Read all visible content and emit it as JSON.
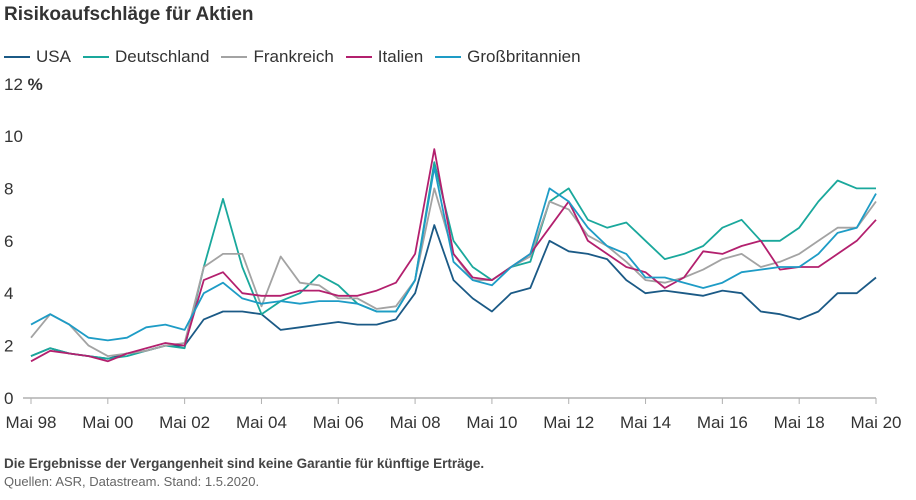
{
  "chart_data": {
    "type": "line",
    "title": "Risikoaufschläge für Aktien",
    "ylabel_top": "12",
    "yunit": "%",
    "ylim": [
      0,
      12
    ],
    "yticks": [
      "0",
      "2",
      "4",
      "6",
      "8",
      "10"
    ],
    "xticks": [
      "Mai 98",
      "Mai 00",
      "Mai 02",
      "Mai 04",
      "Mai 06",
      "Mai 08",
      "Mai 10",
      "Mai 12",
      "Mai 14",
      "Mai 16",
      "Mai 18",
      "Mai 20"
    ],
    "grid": false,
    "legend_position": "top",
    "x": [
      "1998-05",
      "1998-11",
      "1999-05",
      "1999-11",
      "2000-05",
      "2000-11",
      "2001-05",
      "2001-11",
      "2002-05",
      "2002-11",
      "2003-05",
      "2003-11",
      "2004-05",
      "2004-11",
      "2005-05",
      "2005-11",
      "2006-05",
      "2006-11",
      "2007-05",
      "2007-11",
      "2008-05",
      "2008-11",
      "2009-05",
      "2009-11",
      "2010-05",
      "2010-11",
      "2011-05",
      "2011-11",
      "2012-05",
      "2012-11",
      "2013-05",
      "2013-11",
      "2014-05",
      "2014-11",
      "2015-05",
      "2015-11",
      "2016-05",
      "2016-11",
      "2017-05",
      "2017-11",
      "2018-05",
      "2018-11",
      "2019-05",
      "2019-11",
      "2020-05"
    ],
    "series": [
      {
        "name": "USA",
        "color": "#1b5a86",
        "values": [
          1.6,
          1.9,
          1.7,
          1.6,
          1.5,
          1.7,
          1.8,
          2.0,
          2.0,
          3.0,
          3.3,
          3.3,
          3.2,
          2.6,
          2.7,
          2.8,
          2.9,
          2.8,
          2.8,
          3.0,
          4.0,
          6.6,
          4.5,
          3.8,
          3.3,
          4.0,
          4.2,
          6.0,
          5.6,
          5.5,
          5.3,
          4.5,
          4.0,
          4.1,
          4.0,
          3.9,
          4.1,
          4.0,
          3.3,
          3.2,
          3.0,
          3.3,
          4.0,
          4.0,
          4.6
        ]
      },
      {
        "name": "Deutschland",
        "color": "#1aa89c",
        "values": [
          1.6,
          1.9,
          1.7,
          1.6,
          1.5,
          1.6,
          1.8,
          2.0,
          1.9,
          5.0,
          7.6,
          5.0,
          3.2,
          3.7,
          4.0,
          4.7,
          4.3,
          3.6,
          3.3,
          3.3,
          4.5,
          9.0,
          6.0,
          5.0,
          4.5,
          5.0,
          5.2,
          7.5,
          8.0,
          6.8,
          6.5,
          6.7,
          6.0,
          5.3,
          5.5,
          5.8,
          6.5,
          6.8,
          6.0,
          6.0,
          6.5,
          7.5,
          8.3,
          8.0,
          8.0
        ]
      },
      {
        "name": "Frankreich",
        "color": "#a3a3a3",
        "values": [
          2.3,
          3.2,
          2.8,
          2.0,
          1.6,
          1.7,
          1.8,
          2.0,
          2.1,
          5.0,
          5.5,
          5.5,
          3.5,
          5.4,
          4.4,
          4.3,
          3.8,
          3.8,
          3.4,
          3.5,
          4.5,
          8.0,
          5.5,
          4.5,
          4.5,
          5.0,
          5.4,
          7.5,
          7.2,
          6.2,
          5.8,
          5.2,
          4.5,
          4.4,
          4.6,
          4.9,
          5.3,
          5.5,
          5.0,
          5.2,
          5.5,
          6.0,
          6.5,
          6.5,
          7.5
        ]
      },
      {
        "name": "Italien",
        "color": "#b3206e",
        "values": [
          1.4,
          1.8,
          1.7,
          1.6,
          1.4,
          1.7,
          1.9,
          2.1,
          2.0,
          4.5,
          4.8,
          4.0,
          3.9,
          3.9,
          4.1,
          4.1,
          3.9,
          3.9,
          4.1,
          4.4,
          5.5,
          9.5,
          5.5,
          4.6,
          4.5,
          5.0,
          5.5,
          6.5,
          7.5,
          6.0,
          5.5,
          5.0,
          4.8,
          4.2,
          4.6,
          5.6,
          5.5,
          5.8,
          6.0,
          4.9,
          5.0,
          5.0,
          5.5,
          6.0,
          6.8
        ]
      },
      {
        "name": "Großbritannien",
        "color": "#1e9cc6",
        "values": [
          2.8,
          3.2,
          2.8,
          2.3,
          2.2,
          2.3,
          2.7,
          2.8,
          2.6,
          4.0,
          4.4,
          3.8,
          3.6,
          3.7,
          3.6,
          3.7,
          3.7,
          3.6,
          3.3,
          3.3,
          4.5,
          8.8,
          5.2,
          4.5,
          4.3,
          5.0,
          5.5,
          8.0,
          7.5,
          6.5,
          5.8,
          5.5,
          4.6,
          4.6,
          4.4,
          4.2,
          4.4,
          4.8,
          4.9,
          5.0,
          5.0,
          5.5,
          6.3,
          6.5,
          7.8
        ]
      }
    ],
    "axis_color": "#b0b0b0"
  },
  "footer": {
    "note": "Die Ergebnisse der Vergangenheit sind keine Garantie für künftige Erträge.",
    "source": "Quellen: ASR, Datastream. Stand: 1.5.2020."
  }
}
